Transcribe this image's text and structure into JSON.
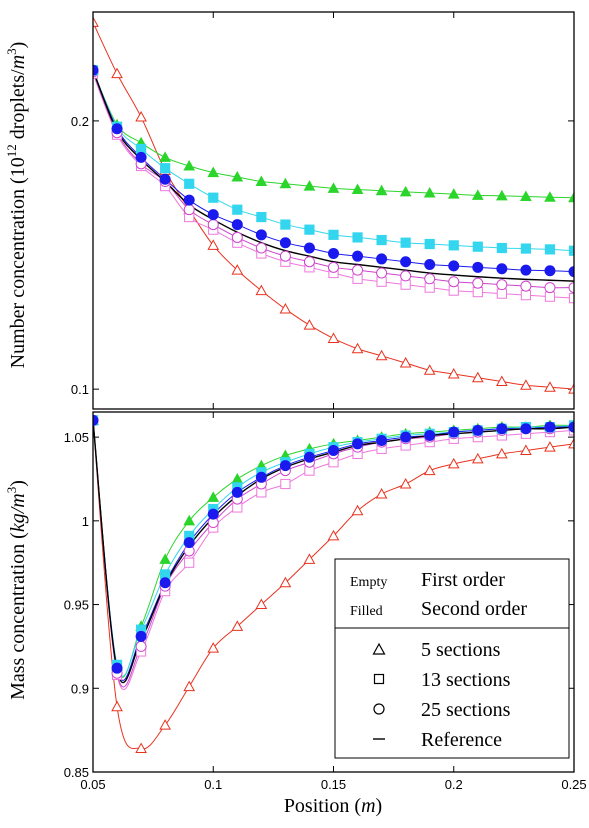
{
  "colors": {
    "five_sections": "#e8321e",
    "five_sections_2nd": "#2bd52b",
    "thirteen_1st": "#ee77dd",
    "thirteen_2nd": "#33d6ee",
    "twentyfive_1st": "#cc44cc",
    "twentyfive_2nd": "#1a1aee",
    "reference": "#000000"
  },
  "chart_data": [
    {
      "type": "line",
      "ylabel": "Number concentration (10^12 droplets/m^3)",
      "ylabel_parts": {
        "base": "Number concentration (10",
        "exp": "12",
        "mid": " droplets/",
        "unit": "m",
        "unit_exp": "3",
        "end": ")"
      },
      "xlim": [
        0.05,
        0.25
      ],
      "ylim": [
        0.095,
        0.265
      ],
      "y_scale": "log",
      "yticks": [
        0.1,
        0.2
      ],
      "ytick_labels": [
        "0.1",
        "0.2"
      ],
      "series": [
        {
          "order": "First order",
          "sections": "5 sections",
          "marker": "triangle",
          "filled": false,
          "color_key": "five_sections",
          "x": [
            0.05,
            0.06,
            0.07,
            0.08,
            0.09,
            0.1,
            0.11,
            0.12,
            0.13,
            0.14,
            0.15,
            0.16,
            0.17,
            0.18,
            0.19,
            0.2,
            0.21,
            0.22,
            0.23,
            0.24,
            0.25
          ],
          "y": [
            0.258,
            0.226,
            0.202,
            0.176,
            0.159,
            0.145,
            0.136,
            0.129,
            0.123,
            0.118,
            0.114,
            0.111,
            0.109,
            0.107,
            0.105,
            0.104,
            0.103,
            0.102,
            0.101,
            0.1005,
            0.1
          ]
        },
        {
          "order": "Second order",
          "sections": "5 sections",
          "marker": "triangle",
          "filled": true,
          "color_key": "five_sections_2nd",
          "x": [
            0.05,
            0.06,
            0.07,
            0.08,
            0.09,
            0.1,
            0.11,
            0.12,
            0.13,
            0.14,
            0.15,
            0.16,
            0.17,
            0.18,
            0.19,
            0.2,
            0.21,
            0.22,
            0.23,
            0.24,
            0.25
          ],
          "y": [
            0.228,
            0.198,
            0.189,
            0.182,
            0.178,
            0.175,
            0.173,
            0.171,
            0.17,
            0.169,
            0.168,
            0.1675,
            0.167,
            0.1665,
            0.166,
            0.1655,
            0.165,
            0.1648,
            0.1645,
            0.1642,
            0.164
          ]
        },
        {
          "order": "First order",
          "sections": "13 sections",
          "marker": "square",
          "filled": false,
          "color_key": "thirteen_1st",
          "x": [
            0.05,
            0.06,
            0.07,
            0.08,
            0.09,
            0.1,
            0.11,
            0.12,
            0.13,
            0.14,
            0.15,
            0.16,
            0.17,
            0.18,
            0.19,
            0.2,
            0.21,
            0.22,
            0.23,
            0.24,
            0.25
          ],
          "y": [
            0.226,
            0.193,
            0.178,
            0.169,
            0.156,
            0.151,
            0.146,
            0.142,
            0.139,
            0.137,
            0.135,
            0.133,
            0.132,
            0.131,
            0.13,
            0.129,
            0.1285,
            0.128,
            0.1275,
            0.127,
            0.1265
          ]
        },
        {
          "order": "Second order",
          "sections": "13 sections",
          "marker": "square",
          "filled": true,
          "color_key": "thirteen_2nd",
          "x": [
            0.05,
            0.06,
            0.07,
            0.08,
            0.09,
            0.1,
            0.11,
            0.12,
            0.13,
            0.14,
            0.15,
            0.16,
            0.17,
            0.18,
            0.19,
            0.2,
            0.21,
            0.22,
            0.23,
            0.24,
            0.25
          ],
          "y": [
            0.228,
            0.197,
            0.186,
            0.177,
            0.17,
            0.164,
            0.159,
            0.156,
            0.153,
            0.151,
            0.149,
            0.148,
            0.147,
            0.146,
            0.1455,
            0.145,
            0.1445,
            0.144,
            0.1438,
            0.1435,
            0.143
          ]
        },
        {
          "order": "First order",
          "sections": "25 sections",
          "marker": "circle",
          "filled": false,
          "color_key": "twentyfive_1st",
          "x": [
            0.05,
            0.06,
            0.07,
            0.08,
            0.09,
            0.1,
            0.11,
            0.12,
            0.13,
            0.14,
            0.15,
            0.16,
            0.17,
            0.18,
            0.19,
            0.2,
            0.21,
            0.22,
            0.23,
            0.24,
            0.25
          ],
          "y": [
            0.227,
            0.194,
            0.179,
            0.171,
            0.159,
            0.153,
            0.148,
            0.144,
            0.141,
            0.139,
            0.137,
            0.136,
            0.135,
            0.134,
            0.133,
            0.132,
            0.1315,
            0.131,
            0.1305,
            0.13,
            0.13
          ]
        },
        {
          "order": "Second order",
          "sections": "25 sections",
          "marker": "circle",
          "filled": true,
          "color_key": "twentyfive_2nd",
          "x": [
            0.05,
            0.06,
            0.07,
            0.08,
            0.09,
            0.1,
            0.11,
            0.12,
            0.13,
            0.14,
            0.15,
            0.16,
            0.17,
            0.18,
            0.19,
            0.2,
            0.21,
            0.22,
            0.23,
            0.24,
            0.25
          ],
          "y": [
            0.228,
            0.196,
            0.182,
            0.172,
            0.163,
            0.157,
            0.153,
            0.149,
            0.146,
            0.144,
            0.142,
            0.141,
            0.14,
            0.139,
            0.138,
            0.1375,
            0.137,
            0.1365,
            0.136,
            0.1358,
            0.1355
          ]
        },
        {
          "order": "",
          "sections": "Reference",
          "marker": "line",
          "filled": false,
          "color_key": "reference",
          "x": [
            0.05,
            0.06,
            0.07,
            0.08,
            0.09,
            0.1,
            0.11,
            0.12,
            0.13,
            0.14,
            0.15,
            0.16,
            0.17,
            0.18,
            0.19,
            0.2,
            0.21,
            0.22,
            0.23,
            0.24,
            0.25
          ],
          "y": [
            0.228,
            0.195,
            0.181,
            0.171,
            0.161,
            0.155,
            0.15,
            0.146,
            0.143,
            0.141,
            0.139,
            0.138,
            0.137,
            0.136,
            0.135,
            0.1343,
            0.1337,
            0.1332,
            0.1328,
            0.1325,
            0.1322
          ]
        }
      ]
    },
    {
      "type": "line",
      "xlabel": "Position (m)",
      "xlabel_parts": {
        "base": "Position (",
        "unit": "m",
        "end": ")"
      },
      "ylabel": "Mass concentration (kg/m^3)",
      "ylabel_parts": {
        "base": "Mass concentration (",
        "unit": "kg/m",
        "unit_exp": "3",
        "end": ")"
      },
      "xlim": [
        0.05,
        0.25
      ],
      "ylim": [
        0.85,
        1.065
      ],
      "xticks": [
        0.05,
        0.1,
        0.15,
        0.2,
        0.25
      ],
      "xtick_labels": [
        "0.05",
        "0.1",
        "0.15",
        "0.2",
        "0.25"
      ],
      "yticks": [
        0.85,
        0.9,
        0.95,
        1.0,
        1.05
      ],
      "ytick_labels": [
        "0.85",
        "0.9",
        "0.95",
        "1",
        "1.05"
      ],
      "series": [
        {
          "order": "First order",
          "sections": "5 sections",
          "marker": "triangle",
          "filled": false,
          "color_key": "five_sections",
          "x": [
            0.05,
            0.06,
            0.07,
            0.08,
            0.09,
            0.1,
            0.11,
            0.12,
            0.13,
            0.14,
            0.15,
            0.16,
            0.17,
            0.18,
            0.19,
            0.2,
            0.21,
            0.22,
            0.23,
            0.24,
            0.25
          ],
          "y": [
            1.06,
            0.889,
            0.864,
            0.878,
            0.901,
            0.924,
            0.937,
            0.95,
            0.963,
            0.977,
            0.991,
            1.006,
            1.016,
            1.022,
            1.03,
            1.034,
            1.037,
            1.04,
            1.042,
            1.044,
            1.046
          ]
        },
        {
          "order": "Second order",
          "sections": "5 sections",
          "marker": "triangle",
          "filled": true,
          "color_key": "five_sections_2nd",
          "x": [
            0.05,
            0.06,
            0.07,
            0.08,
            0.09,
            0.1,
            0.11,
            0.12,
            0.13,
            0.14,
            0.15,
            0.16,
            0.17,
            0.18,
            0.19,
            0.2,
            0.21,
            0.22,
            0.23,
            0.24,
            0.25
          ],
          "y": [
            1.06,
            0.913,
            0.937,
            0.977,
            1.0,
            1.014,
            1.025,
            1.033,
            1.039,
            1.043,
            1.046,
            1.048,
            1.05,
            1.052,
            1.053,
            1.054,
            1.055,
            1.056,
            1.056,
            1.057,
            1.057
          ]
        },
        {
          "order": "First order",
          "sections": "13 sections",
          "marker": "square",
          "filled": false,
          "color_key": "thirteen_1st",
          "x": [
            0.05,
            0.06,
            0.07,
            0.08,
            0.09,
            0.1,
            0.11,
            0.12,
            0.13,
            0.14,
            0.15,
            0.16,
            0.17,
            0.18,
            0.19,
            0.2,
            0.21,
            0.22,
            0.23,
            0.24,
            0.25
          ],
          "y": [
            1.06,
            0.908,
            0.922,
            0.958,
            0.975,
            0.996,
            1.008,
            1.017,
            1.022,
            1.03,
            1.035,
            1.04,
            1.043,
            1.045,
            1.047,
            1.049,
            1.05,
            1.051,
            1.052,
            1.053,
            1.054
          ]
        },
        {
          "order": "Second order",
          "sections": "13 sections",
          "marker": "square",
          "filled": true,
          "color_key": "thirteen_2nd",
          "x": [
            0.05,
            0.06,
            0.07,
            0.08,
            0.09,
            0.1,
            0.11,
            0.12,
            0.13,
            0.14,
            0.15,
            0.16,
            0.17,
            0.18,
            0.19,
            0.2,
            0.21,
            0.22,
            0.23,
            0.24,
            0.25
          ],
          "y": [
            1.06,
            0.914,
            0.935,
            0.968,
            0.991,
            1.007,
            1.02,
            1.029,
            1.035,
            1.04,
            1.044,
            1.047,
            1.049,
            1.051,
            1.052,
            1.053,
            1.054,
            1.055,
            1.056,
            1.056,
            1.057
          ]
        },
        {
          "order": "First order",
          "sections": "25 sections",
          "marker": "circle",
          "filled": false,
          "color_key": "twentyfive_1st",
          "x": [
            0.05,
            0.06,
            0.07,
            0.08,
            0.09,
            0.1,
            0.11,
            0.12,
            0.13,
            0.14,
            0.15,
            0.16,
            0.17,
            0.18,
            0.19,
            0.2,
            0.21,
            0.22,
            0.23,
            0.24,
            0.25
          ],
          "y": [
            1.06,
            0.909,
            0.925,
            0.961,
            0.982,
            0.999,
            1.013,
            1.022,
            1.03,
            1.035,
            1.04,
            1.044,
            1.047,
            1.049,
            1.05,
            1.052,
            1.053,
            1.054,
            1.055,
            1.055,
            1.056
          ]
        },
        {
          "order": "Second order",
          "sections": "25 sections",
          "marker": "circle",
          "filled": true,
          "color_key": "twentyfive_2nd",
          "x": [
            0.05,
            0.06,
            0.07,
            0.08,
            0.09,
            0.1,
            0.11,
            0.12,
            0.13,
            0.14,
            0.15,
            0.16,
            0.17,
            0.18,
            0.19,
            0.2,
            0.21,
            0.22,
            0.23,
            0.24,
            0.25
          ],
          "y": [
            1.06,
            0.912,
            0.931,
            0.963,
            0.987,
            1.004,
            1.017,
            1.026,
            1.033,
            1.038,
            1.042,
            1.046,
            1.048,
            1.05,
            1.051,
            1.053,
            1.054,
            1.055,
            1.055,
            1.056,
            1.056
          ]
        },
        {
          "order": "",
          "sections": "Reference",
          "marker": "line",
          "filled": false,
          "color_key": "reference",
          "x": [
            0.05,
            0.06,
            0.07,
            0.08,
            0.09,
            0.1,
            0.11,
            0.12,
            0.13,
            0.14,
            0.15,
            0.16,
            0.17,
            0.18,
            0.19,
            0.2,
            0.21,
            0.22,
            0.23,
            0.24,
            0.25
          ],
          "y": [
            1.06,
            0.911,
            0.929,
            0.962,
            0.985,
            1.002,
            1.015,
            1.025,
            1.032,
            1.037,
            1.041,
            1.045,
            1.047,
            1.049,
            1.051,
            1.052,
            1.053,
            1.054,
            1.055,
            1.055,
            1.056
          ]
        }
      ]
    }
  ],
  "legend": {
    "placement": "bottom-right of lower panel",
    "empty_label": "Empty",
    "first_order": "First order",
    "filled_label": "Filled",
    "second_order": "Second order",
    "items": [
      {
        "marker": "triangle",
        "label": "5 sections"
      },
      {
        "marker": "square",
        "label": "13 sections"
      },
      {
        "marker": "circle",
        "label": "25 sections"
      },
      {
        "marker": "line",
        "label": "Reference"
      }
    ]
  }
}
